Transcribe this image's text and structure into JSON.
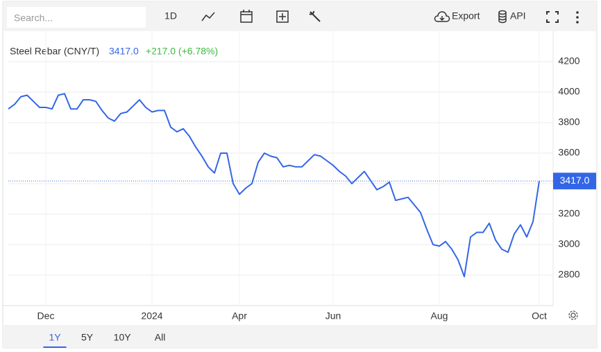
{
  "toolbar": {
    "search_placeholder": "Search...",
    "interval": "1D",
    "export": "Export",
    "api": "API"
  },
  "header": {
    "last": "3417.0",
    "change": "+217.0 (+6.78%)"
  },
  "ranges": {
    "items": [
      "1Y",
      "5Y",
      "10Y",
      "All"
    ],
    "selected": 0
  },
  "chart_data": {
    "type": "line",
    "title": "Steel Rebar (CNY/T)",
    "categories": [
      null,
      null,
      null,
      null,
      null,
      null,
      "Dec",
      null,
      null,
      null,
      null,
      null,
      null,
      null,
      null,
      null,
      null,
      null,
      null,
      null,
      null,
      null,
      null,
      "2024",
      null,
      null,
      null,
      null,
      null,
      null,
      null,
      null,
      null,
      null,
      null,
      null,
      null,
      "Apr",
      null,
      null,
      null,
      null,
      null,
      null,
      null,
      null,
      null,
      null,
      null,
      null,
      null,
      null,
      "Jun",
      null,
      null,
      null,
      null,
      null,
      null,
      null,
      null,
      null,
      null,
      null,
      null,
      null,
      null,
      null,
      null,
      "Aug",
      null,
      null,
      null,
      null,
      null,
      null,
      null,
      null,
      null,
      null,
      null,
      null,
      null,
      null,
      null,
      "Oct"
    ],
    "series": [
      {
        "name": "Steel Rebar (CNY/T)",
        "color": "#3366e6",
        "values": [
          3890,
          3920,
          3970,
          3980,
          3940,
          3900,
          3900,
          3890,
          3980,
          3990,
          3890,
          3890,
          3950,
          3950,
          3940,
          3880,
          3830,
          3810,
          3860,
          3870,
          3910,
          3950,
          3900,
          3870,
          3880,
          3880,
          3770,
          3740,
          3760,
          3710,
          3640,
          3580,
          3510,
          3470,
          3600,
          3600,
          3400,
          3330,
          3370,
          3400,
          3540,
          3600,
          3580,
          3570,
          3510,
          3520,
          3510,
          3510,
          3550,
          3590,
          3580,
          3550,
          3520,
          3480,
          3450,
          3400,
          3440,
          3480,
          3420,
          3360,
          3380,
          3410,
          3290,
          3300,
          3310,
          3260,
          3210,
          3100,
          3000,
          2990,
          3020,
          2970,
          2900,
          2790,
          3050,
          3080,
          3080,
          3140,
          3030,
          2970,
          2950,
          3070,
          3130,
          3050,
          3150,
          3417
        ]
      }
    ],
    "ylim": [
      2600,
      4400
    ],
    "yticks": [
      2800,
      3000,
      3200,
      3400,
      3600,
      3800,
      4000,
      4200
    ],
    "grid": true
  }
}
